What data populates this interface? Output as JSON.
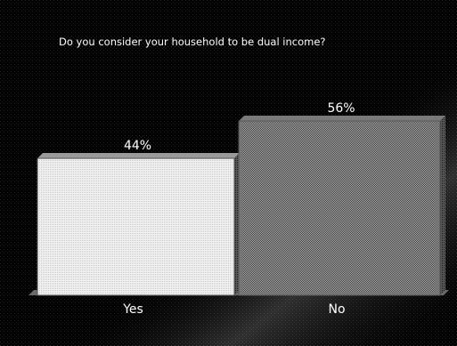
{
  "chart_data": {
    "type": "bar",
    "title": "Do you consider your household to be dual income?",
    "categories": [
      "Yes",
      "No"
    ],
    "values": [
      44,
      56
    ],
    "value_labels": [
      "44%",
      "56%"
    ],
    "xlabel": "",
    "ylabel": "",
    "ylim": [
      0,
      60
    ],
    "grid": false,
    "legend": "none",
    "style": "3d-bars-dithered"
  },
  "colors": {
    "background": "#000000",
    "bar_yes": "#e8e8e8",
    "bar_no": "#8c8c8c",
    "text": "#ffffff"
  }
}
